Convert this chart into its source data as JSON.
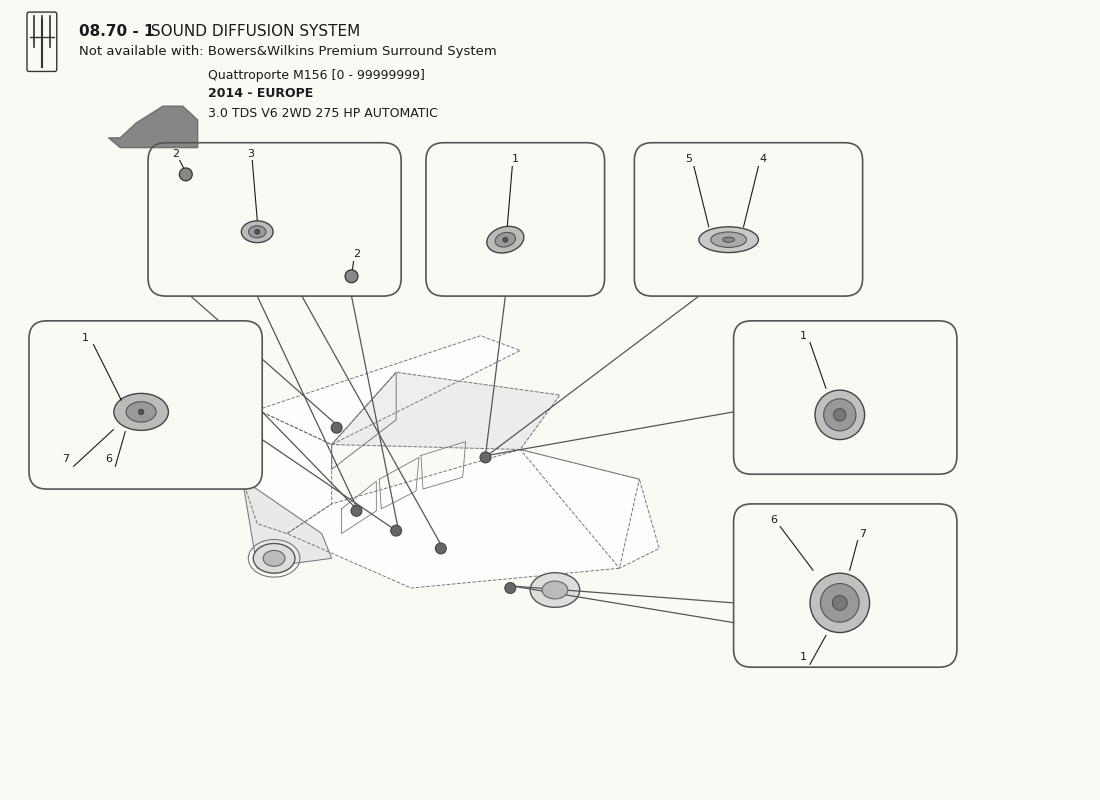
{
  "title_bold": "08.70 - 1",
  "title_rest": " SOUND DIFFUSION SYSTEM",
  "title_sub": "Not available with: Bowers&Wilkins Premium Surround System",
  "car_model": "Quattroporte M156 [0 - 99999999]",
  "car_year": "2014 - EUROPE",
  "car_engine": "3.0 TDS V6 2WD 275 HP AUTOMATIC",
  "bg_color": "#FAFAF5",
  "text_color": "#1a1a1a",
  "box_edge": "#555555",
  "line_color": "#555555",
  "fig_width": 11.0,
  "fig_height": 8.0,
  "dpi": 100
}
